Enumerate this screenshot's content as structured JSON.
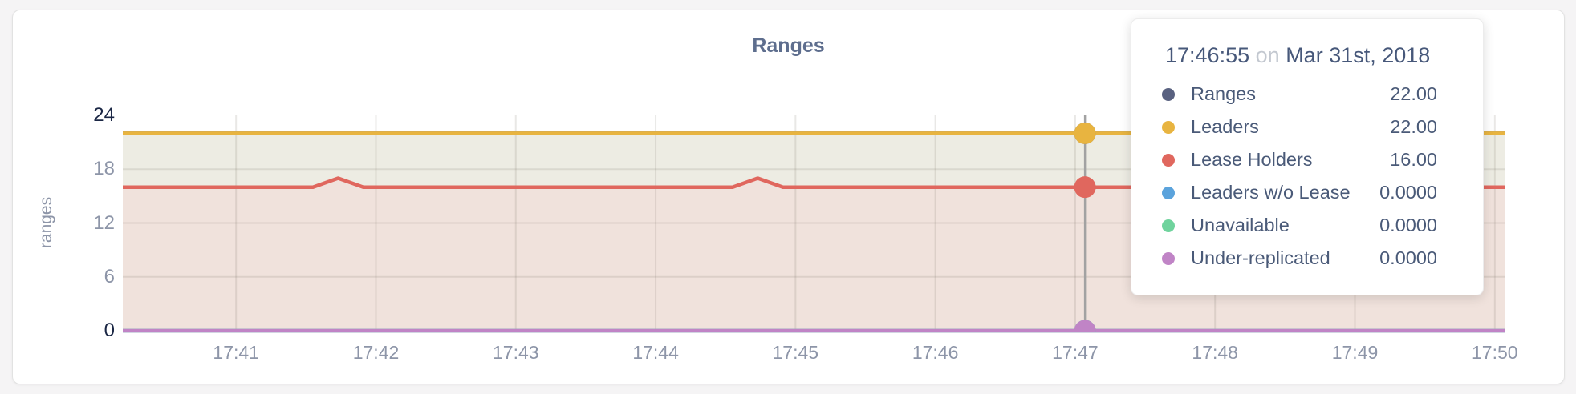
{
  "page": {
    "background": "#f5f4f5",
    "card_background": "#ffffff"
  },
  "chart_data": {
    "type": "area",
    "title": "Ranges",
    "ylabel": "ranges",
    "xlabel": "",
    "ylim": [
      0,
      24
    ],
    "y_ticks": [
      0,
      6,
      12,
      18,
      24
    ],
    "x_ticks": [
      {
        "label": "17:41",
        "minute": 1
      },
      {
        "label": "17:42",
        "minute": 2
      },
      {
        "label": "17:43",
        "minute": 3
      },
      {
        "label": "17:44",
        "minute": 4
      },
      {
        "label": "17:45",
        "minute": 5
      },
      {
        "label": "17:46",
        "minute": 6
      },
      {
        "label": "17:47",
        "minute": 7
      },
      {
        "label": "17:48",
        "minute": 8
      },
      {
        "label": "17:49",
        "minute": 9
      },
      {
        "label": "17:50",
        "minute": 10
      }
    ],
    "x_domain_minutes": [
      0.19,
      10.07
    ],
    "grid": "on",
    "legend_position": "tooltip-only",
    "series": [
      {
        "name": "Ranges",
        "color": "#596180",
        "points": [
          [
            0.19,
            22
          ],
          [
            10.07,
            22
          ]
        ],
        "hover_value": 22
      },
      {
        "name": "Leaders",
        "color": "#e8b440",
        "fill": "#edece3",
        "points": [
          [
            0.19,
            22
          ],
          [
            10.07,
            22
          ]
        ],
        "hover_value": 22
      },
      {
        "name": "Lease Holders",
        "color": "#e0675e",
        "fill": "#f0e2dc",
        "points": [
          [
            0.19,
            16
          ],
          [
            1.55,
            16
          ],
          [
            1.73,
            17
          ],
          [
            1.91,
            16
          ],
          [
            4.55,
            16
          ],
          [
            4.73,
            17
          ],
          [
            4.91,
            16
          ],
          [
            10.07,
            16
          ]
        ],
        "hover_value": 16
      },
      {
        "name": "Leaders w/o Lease",
        "color": "#5ba3dc",
        "points": [
          [
            0.19,
            0
          ],
          [
            10.07,
            0
          ]
        ],
        "hover_value": 0
      },
      {
        "name": "Unavailable",
        "color": "#6fd39d",
        "points": [
          [
            0.19,
            0
          ],
          [
            10.07,
            0
          ]
        ],
        "hover_value": 0
      },
      {
        "name": "Under-replicated",
        "color": "#c084c6",
        "points": [
          [
            0.19,
            0
          ],
          [
            10.07,
            0
          ]
        ],
        "hover_value": 0
      }
    ],
    "hover": {
      "minutes": 7.07,
      "guideline_color": "#a2a2a2"
    },
    "colors": {
      "axis_text": "#8d95a8",
      "axis_emphasis": "#1b2745",
      "gridline": "rgba(120,112,100,0.16)"
    }
  },
  "tooltip": {
    "time": "17:46:55",
    "preposition": "on",
    "date": "Mar 31st, 2018",
    "rows": [
      {
        "label": "Ranges",
        "value": "22.00",
        "color": "#596180"
      },
      {
        "label": "Leaders",
        "value": "22.00",
        "color": "#e8b440"
      },
      {
        "label": "Lease Holders",
        "value": "16.00",
        "color": "#e0675e"
      },
      {
        "label": "Leaders w/o Lease",
        "value": "0.0000",
        "color": "#5ba3dc"
      },
      {
        "label": "Unavailable",
        "value": "0.0000",
        "color": "#6fd39d"
      },
      {
        "label": "Under-replicated",
        "value": "0.0000",
        "color": "#c084c6"
      }
    ]
  }
}
